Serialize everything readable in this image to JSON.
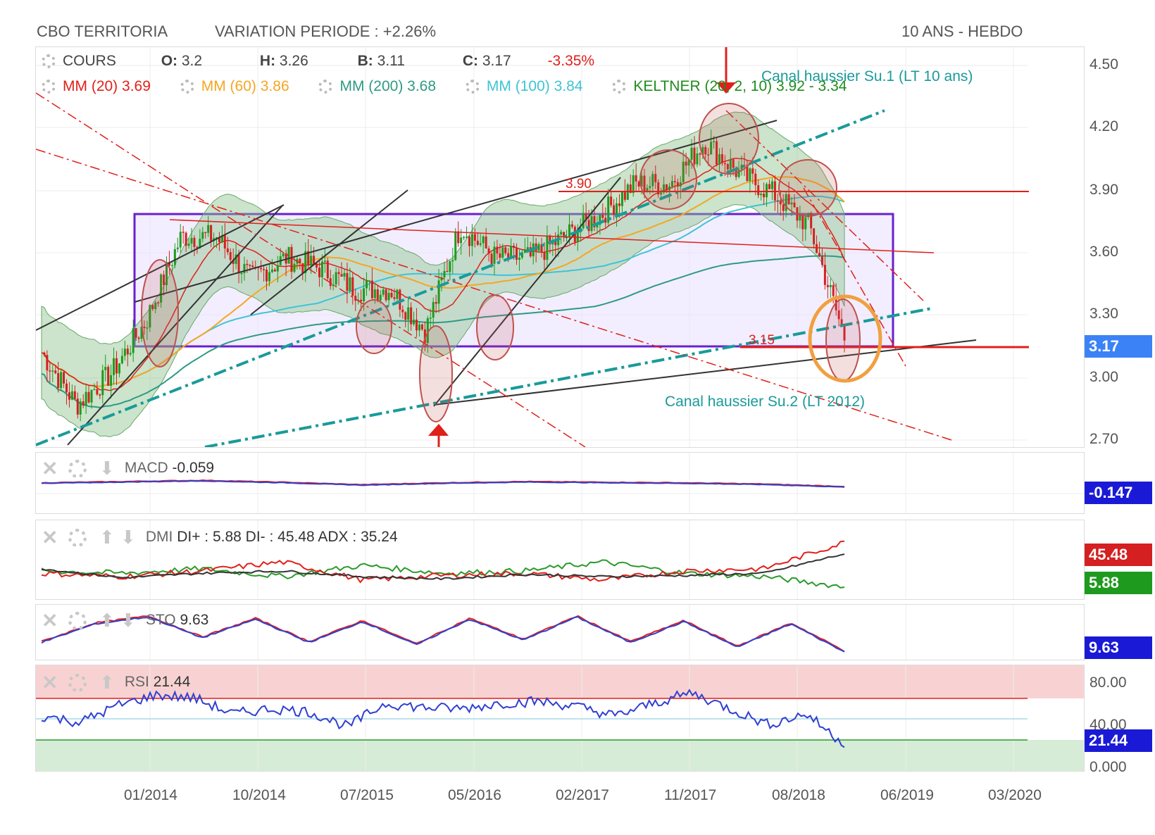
{
  "header": {
    "ticker": "CBO TERRITORIA",
    "variation": "VARIATION PERIODE : +2.26%",
    "timeframe": "10 ANS - HEBDO"
  },
  "ohlc": {
    "cours_label": "COURS",
    "o_label": "O:",
    "o": "3.2",
    "h_label": "H:",
    "h": "3.26",
    "b_label": "B:",
    "b": "3.11",
    "c_label": "C:",
    "c": "3.17",
    "change": "-3.35%"
  },
  "overlays": [
    {
      "label": "MM (20)",
      "value": "3.69",
      "color": "#e0201b"
    },
    {
      "label": "MM (60)",
      "value": "3.86",
      "color": "#f5a623"
    },
    {
      "label": "MM (200)",
      "value": "3.68",
      "color": "#2e9a84"
    },
    {
      "label": "MM (100)",
      "value": "3.84",
      "color": "#3fc4d4"
    },
    {
      "label": "KELTNER (20, 2, 10)",
      "value": "3.92 - 3.34",
      "color": "#1e8c1e"
    }
  ],
  "annotations": {
    "canal1": "Canal haussier Su.1 (LT 10 ans)",
    "canal2": "Canal haussier Su.2 (LT 2012)",
    "level_390": "3.90",
    "level_315": "3.15"
  },
  "price_axis": [
    "4.50",
    "4.20",
    "3.90",
    "3.60",
    "3.30",
    "3.17",
    "3.00",
    "2.70"
  ],
  "x_axis": [
    "01/2014",
    "10/2014",
    "07/2015",
    "05/2016",
    "02/2017",
    "11/2017",
    "08/2018",
    "06/2019",
    "03/2020"
  ],
  "indicators": {
    "macd": {
      "name": "MACD",
      "value": "-0.059",
      "badge": "-0.147"
    },
    "dmi": {
      "name": "DMI",
      "text": "DI+ : 5.88 DI- : 45.48 ADX : 35.24",
      "badge_minus": "45.48",
      "badge_plus": "5.88"
    },
    "sto": {
      "name": "STO",
      "value": "9.63",
      "badge": "9.63"
    },
    "rsi": {
      "name": "RSI",
      "value": "21.44",
      "badge": "21.44",
      "axis": [
        "80.00",
        "40.00",
        "0.000"
      ]
    }
  },
  "chart_data": [
    {
      "type": "line",
      "title": "CBO TERRITORIA",
      "xlabel": "",
      "ylabel": "",
      "ylim": [
        2.65,
        4.55
      ],
      "x": [
        "2013-04",
        "2013-07",
        "2013-10",
        "2014-01",
        "2014-04",
        "2014-07",
        "2014-10",
        "2015-01",
        "2015-04",
        "2015-07",
        "2015-10",
        "2016-01",
        "2016-04",
        "2016-07",
        "2016-10",
        "2017-01",
        "2017-04",
        "2017-07",
        "2017-10",
        "2018-01",
        "2018-04",
        "2018-07",
        "2018-10",
        "2018-11"
      ],
      "series": [
        {
          "name": "COURS",
          "values": [
            3.1,
            2.85,
            3.0,
            3.25,
            3.65,
            3.65,
            3.45,
            3.55,
            3.5,
            3.4,
            3.4,
            3.2,
            3.7,
            3.55,
            3.55,
            3.65,
            3.75,
            3.9,
            3.9,
            4.1,
            3.95,
            3.85,
            3.7,
            3.17
          ]
        }
      ],
      "grid": true
    },
    {
      "type": "line",
      "title": "MACD",
      "series": [
        {
          "name": "MACD",
          "values": [
            0.0,
            0.02,
            0.04,
            0.01,
            -0.03,
            0.0,
            0.02,
            0.01,
            0.0,
            -0.02,
            -0.059
          ]
        }
      ]
    },
    {
      "type": "line",
      "title": "DMI",
      "series": [
        {
          "name": "DI+",
          "values": [
            20,
            18,
            22,
            15,
            25,
            18,
            20,
            28,
            18,
            15,
            5.88
          ]
        },
        {
          "name": "DI-",
          "values": [
            18,
            15,
            20,
            28,
            12,
            16,
            18,
            12,
            20,
            22,
            45.48
          ]
        },
        {
          "name": "ADX",
          "values": [
            22,
            14,
            18,
            20,
            15,
            13,
            17,
            15,
            16,
            18,
            35.24
          ]
        }
      ]
    },
    {
      "type": "line",
      "title": "STO",
      "series": [
        {
          "name": "STO",
          "values": [
            30,
            70,
            85,
            40,
            80,
            30,
            75,
            25,
            80,
            35,
            85,
            30,
            75,
            20,
            70,
            9.63
          ]
        }
      ]
    },
    {
      "type": "line",
      "title": "RSI",
      "ylim": [
        0,
        100
      ],
      "series": [
        {
          "name": "RSI",
          "values": [
            48,
            42,
            58,
            68,
            65,
            50,
            55,
            52,
            38,
            60,
            56,
            55,
            60,
            62,
            57,
            48,
            60,
            70,
            55,
            40,
            50,
            21.44
          ]
        }
      ]
    }
  ],
  "colors": {
    "accent_red": "#e0201b",
    "box_purple": "#6a1fd0",
    "price_badge": "#3b82f6",
    "macd_badge": "#1a1ad6",
    "dmi_minus_badge": "#d42020",
    "dmi_plus_badge": "#1e9a1e"
  }
}
